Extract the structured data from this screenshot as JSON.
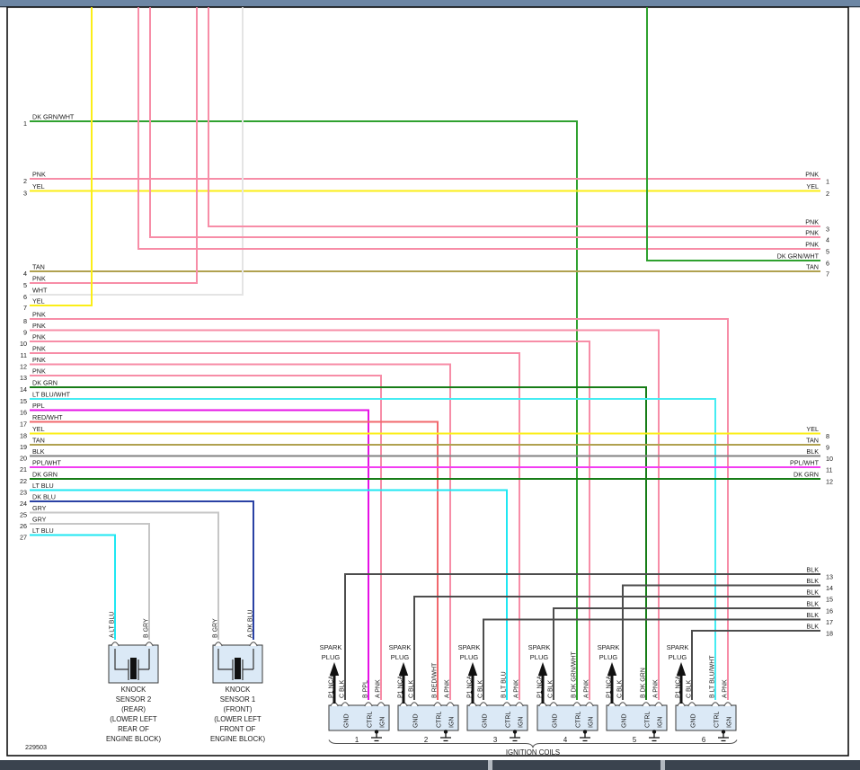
{
  "left_wires": [
    {
      "num": "1",
      "label": "DK GRN/WHT"
    },
    {
      "num": "2",
      "label": "PNK"
    },
    {
      "num": "3",
      "label": "YEL"
    },
    {
      "num": "4",
      "label": "TAN"
    },
    {
      "num": "5",
      "label": "PNK"
    },
    {
      "num": "6",
      "label": "WHT"
    },
    {
      "num": "7",
      "label": "YEL"
    },
    {
      "num": "8",
      "label": "PNK"
    },
    {
      "num": "9",
      "label": "PNK"
    },
    {
      "num": "10",
      "label": "PNK"
    },
    {
      "num": "11",
      "label": "PNK"
    },
    {
      "num": "12",
      "label": "PNK"
    },
    {
      "num": "13",
      "label": "PNK"
    },
    {
      "num": "14",
      "label": "DK GRN"
    },
    {
      "num": "15",
      "label": "LT BLU/WHT"
    },
    {
      "num": "16",
      "label": "PPL"
    },
    {
      "num": "17",
      "label": "RED/WHT"
    },
    {
      "num": "18",
      "label": "YEL"
    },
    {
      "num": "19",
      "label": "TAN"
    },
    {
      "num": "20",
      "label": "BLK"
    },
    {
      "num": "21",
      "label": "PPL/WHT"
    },
    {
      "num": "22",
      "label": "DK GRN"
    },
    {
      "num": "23",
      "label": "LT BLU"
    },
    {
      "num": "24",
      "label": "DK BLU"
    },
    {
      "num": "25",
      "label": "GRY"
    },
    {
      "num": "26",
      "label": "GRY"
    },
    {
      "num": "27",
      "label": "LT BLU"
    }
  ],
  "right_wires": [
    {
      "num": "1",
      "label": "PNK"
    },
    {
      "num": "2",
      "label": "YEL"
    },
    {
      "num": "3",
      "label": "PNK"
    },
    {
      "num": "4",
      "label": "PNK"
    },
    {
      "num": "5",
      "label": "PNK"
    },
    {
      "num": "6",
      "label": "DK GRN/WHT"
    },
    {
      "num": "7",
      "label": "TAN"
    },
    {
      "num": "8",
      "label": "YEL"
    },
    {
      "num": "9",
      "label": "TAN"
    },
    {
      "num": "10",
      "label": "BLK"
    },
    {
      "num": "11",
      "label": "PPL/WHT"
    },
    {
      "num": "12",
      "label": "DK GRN"
    },
    {
      "num": "13",
      "label": "BLK"
    },
    {
      "num": "14",
      "label": "BLK"
    },
    {
      "num": "15",
      "label": "BLK"
    },
    {
      "num": "16",
      "label": "BLK"
    },
    {
      "num": "17",
      "label": "BLK"
    },
    {
      "num": "18",
      "label": "BLK"
    }
  ],
  "coils": [
    {
      "number": "1",
      "pin_plug": "P1 NCA",
      "pin_gnd": "C BLK",
      "pin_ctrl": "B PPL",
      "pin_ign": "A PNK"
    },
    {
      "number": "2",
      "pin_plug": "P1 NCA",
      "pin_gnd": "C BLK",
      "pin_ctrl": "B RED/WHT",
      "pin_ign": "A PNK"
    },
    {
      "number": "3",
      "pin_plug": "P1 NCA",
      "pin_gnd": "C BLK",
      "pin_ctrl": "B LT BLU",
      "pin_ign": "A PNK"
    },
    {
      "number": "4",
      "pin_plug": "P1 NCA",
      "pin_gnd": "C BLK",
      "pin_ctrl": "B DK GRN/WHT",
      "pin_ign": "A PNK"
    },
    {
      "number": "5",
      "pin_plug": "P1 NCA",
      "pin_gnd": "C BLK",
      "pin_ctrl": "B DK GRN",
      "pin_ign": "A PNK"
    },
    {
      "number": "6",
      "pin_plug": "P1 NCA",
      "pin_gnd": "C BLK",
      "pin_ctrl": "B LT BLU/WHT",
      "pin_ign": "A PNK"
    }
  ],
  "coil_terminals": [
    "GND",
    "CTRL",
    "IGN"
  ],
  "spark_plug_label": [
    "SPARK",
    "PLUG"
  ],
  "knock_sensors": [
    {
      "pin_left": "A LT BLU",
      "pin_right": "B GRY",
      "caption": [
        "KNOCK",
        "SENSOR 2",
        "(REAR)",
        "(LOWER LEFT",
        "REAR OF",
        "ENGINE BLOCK)"
      ]
    },
    {
      "pin_left": "B GRY",
      "pin_right": "A DK BLU",
      "caption": [
        "KNOCK",
        "SENSOR 1",
        "(FRONT)",
        "(LOWER LEFT",
        "FRONT OF",
        "ENGINE BLOCK)"
      ]
    }
  ],
  "footer": {
    "diagram_id": "229503",
    "ignition_coils_caption": "IGNITION COILS"
  },
  "colors": {
    "PNK": "#f78da7",
    "YEL": "#fbee17",
    "TAN": "#b0a14f",
    "WHT": "#e4e4e4",
    "DK GRN/WHT": "#2fa12f",
    "DK GRN": "#177d17",
    "LT BLU/WHT": "#45ecf2",
    "LT BLU": "#1fe7f2",
    "PPL": "#e512e5",
    "PPL/WHT": "#f23df2",
    "RED/WHT": "#f1686d",
    "BLK": "#828282",
    "BLK_DARK": "#4d4d4d",
    "GRY": "#c6c6c6",
    "DK BLU": "#2a41a4",
    "top_bar": "#6c86a4",
    "bottom_bar": "#3a434e",
    "bar_separator": "#b2b8bf",
    "frame": "#111111",
    "box_fill": "#dbe9f6",
    "box_stroke": "#3a3a3a"
  }
}
